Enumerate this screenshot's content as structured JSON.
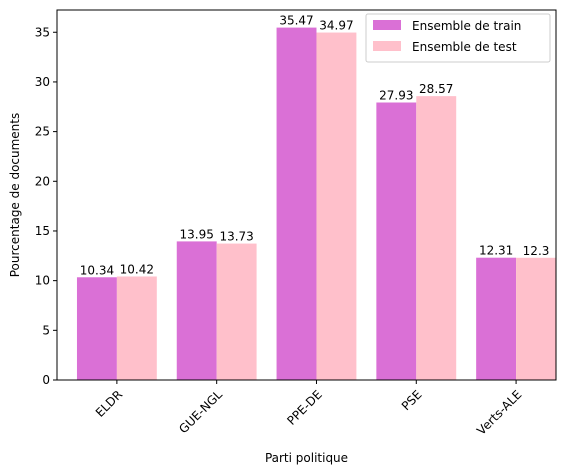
{
  "chart_data": {
    "type": "bar",
    "title": "",
    "xlabel": "Parti politique",
    "ylabel": "Pourcentage de documents",
    "categories": [
      "ELDR",
      "GUE-NGL",
      "PPE-DE",
      "PSE",
      "Verts-ALE"
    ],
    "series": [
      {
        "name": "Ensemble de train",
        "color": "#da70d6",
        "values": [
          10.34,
          13.95,
          35.47,
          27.93,
          12.31
        ],
        "labels": [
          "10.34",
          "13.95",
          "35.47",
          "27.93",
          "12.31"
        ]
      },
      {
        "name": "Ensemble de test",
        "color": "#ffc0cb",
        "values": [
          10.42,
          13.73,
          34.97,
          28.57,
          12.3
        ],
        "labels": [
          "10.42",
          "13.73",
          "34.97",
          "28.57",
          "12.3"
        ]
      }
    ],
    "ylim": [
      0,
      37.24
    ],
    "yticks": [
      0,
      5,
      10,
      15,
      20,
      25,
      30,
      35
    ],
    "ytick_labels": [
      "0",
      "5",
      "10",
      "15",
      "20",
      "25",
      "30",
      "35"
    ],
    "grid": false,
    "legend_position": "top-right"
  }
}
